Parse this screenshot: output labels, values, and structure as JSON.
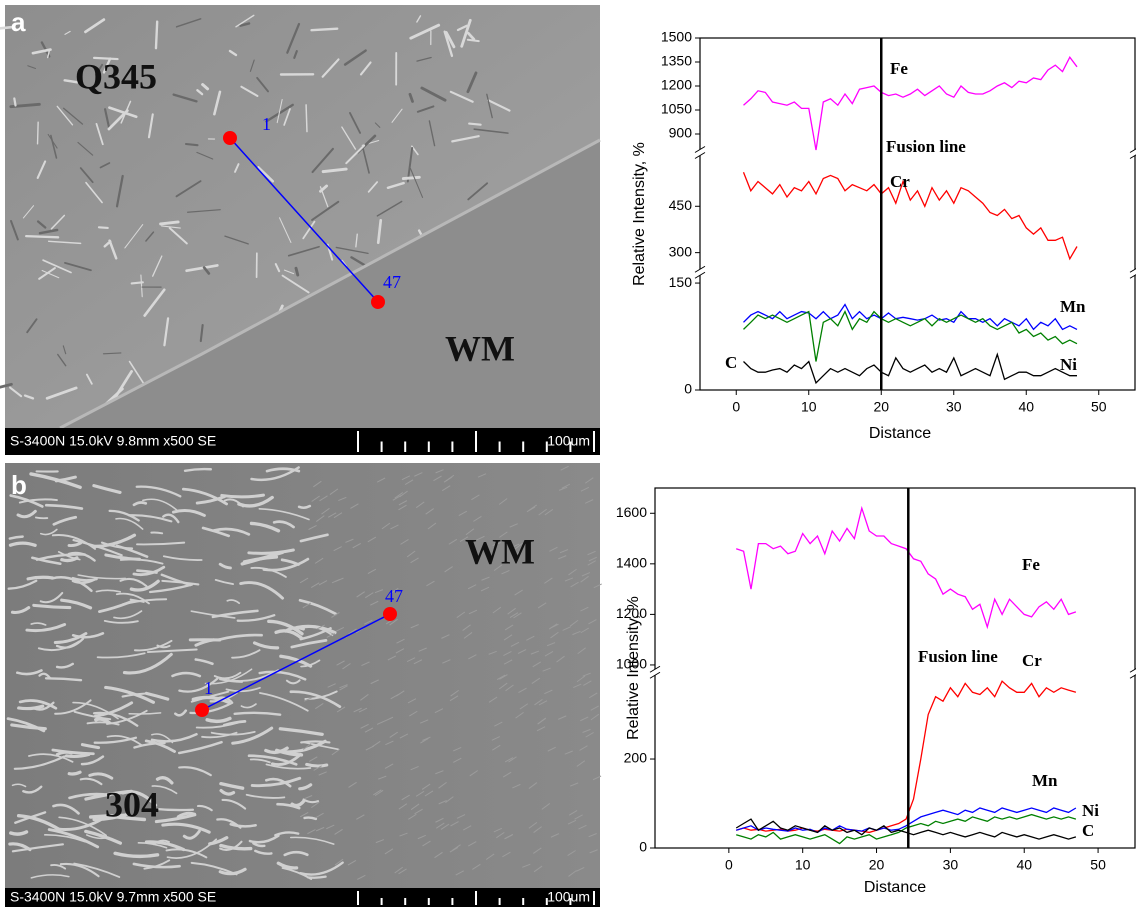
{
  "panels": [
    {
      "letter": "a",
      "labels": [
        "Q345",
        "WM"
      ],
      "point_start": "1",
      "point_end": "47",
      "info": "S-3400N 15.0kV 9.8mm x500 SE",
      "scale": "100um"
    },
    {
      "letter": "b",
      "labels": [
        "WM",
        "304"
      ],
      "point_start": "1",
      "point_end": "47",
      "info": "S-3400N 15.0kV 9.7mm x500 SE",
      "scale": "100um"
    }
  ],
  "chart_data": [
    {
      "type": "line",
      "xlabel": "Distance",
      "ylabel": "Relative Intensity, %",
      "x": [
        1,
        2,
        3,
        4,
        5,
        6,
        7,
        8,
        9,
        10,
        11,
        12,
        13,
        14,
        15,
        16,
        17,
        18,
        19,
        20,
        21,
        22,
        23,
        24,
        25,
        26,
        27,
        28,
        29,
        30,
        31,
        32,
        33,
        34,
        35,
        36,
        37,
        38,
        39,
        40,
        41,
        42,
        43,
        44,
        45,
        46,
        47
      ],
      "xlim": [
        -5,
        55
      ],
      "xticks": [
        0,
        10,
        20,
        30,
        40,
        50
      ],
      "y_segments": [
        {
          "ylim": [
            0,
            155
          ],
          "yticks": [
            0,
            150
          ]
        },
        {
          "ylim": [
            260,
            590
          ],
          "yticks": [
            300,
            450
          ]
        },
        {
          "ylim": [
            850,
            1500
          ],
          "yticks": [
            900,
            1050,
            1200,
            1350,
            1500
          ]
        }
      ],
      "fusion_x": 20,
      "fusion_label": "Fusion line",
      "series": [
        {
          "name": "Fe",
          "color": "#ff00ff",
          "values": [
            1080,
            1120,
            1170,
            1160,
            1100,
            1090,
            1080,
            1100,
            1060,
            1060,
            800,
            1100,
            1120,
            1080,
            1150,
            1090,
            1180,
            1190,
            1200,
            1160,
            1140,
            1150,
            1130,
            1150,
            1180,
            1140,
            1170,
            1200,
            1150,
            1130,
            1200,
            1160,
            1150,
            1150,
            1170,
            1200,
            1220,
            1190,
            1230,
            1220,
            1250,
            1240,
            1300,
            1330,
            1290,
            1380,
            1320
          ]
        },
        {
          "name": "Cr",
          "color": "#ff0000",
          "values": [
            560,
            500,
            530,
            510,
            490,
            520,
            480,
            510,
            500,
            530,
            490,
            540,
            550,
            540,
            500,
            520,
            510,
            500,
            520,
            490,
            510,
            460,
            530,
            470,
            500,
            450,
            510,
            470,
            500,
            460,
            510,
            500,
            480,
            460,
            430,
            420,
            440,
            410,
            420,
            380,
            360,
            380,
            340,
            340,
            350,
            280,
            320
          ]
        },
        {
          "name": "Mn",
          "color": "#0000ff",
          "values": [
            95,
            105,
            110,
            105,
            100,
            110,
            100,
            105,
            110,
            108,
            100,
            110,
            100,
            105,
            120,
            100,
            110,
            100,
            105,
            100,
            108,
            100,
            102,
            100,
            98,
            100,
            105,
            98,
            100,
            95,
            110,
            100,
            100,
            95,
            100,
            90,
            100,
            95,
            90,
            100,
            85,
            95,
            90,
            100,
            85,
            90,
            85
          ]
        },
        {
          "name": "Ni",
          "color": "#008000",
          "values": [
            85,
            95,
            105,
            100,
            105,
            100,
            95,
            100,
            105,
            110,
            40,
            95,
            100,
            90,
            110,
            85,
            100,
            95,
            110,
            100,
            95,
            100,
            95,
            90,
            95,
            100,
            90,
            100,
            95,
            100,
            105,
            100,
            95,
            100,
            90,
            85,
            90,
            95,
            80,
            85,
            75,
            80,
            70,
            75,
            65,
            70,
            65
          ]
        },
        {
          "name": "C",
          "color": "#000000",
          "values": [
            40,
            30,
            25,
            25,
            28,
            30,
            25,
            35,
            30,
            40,
            10,
            20,
            30,
            25,
            30,
            25,
            20,
            30,
            35,
            25,
            20,
            45,
            30,
            25,
            30,
            35,
            25,
            30,
            25,
            45,
            20,
            25,
            30,
            25,
            20,
            50,
            15,
            20,
            25,
            25,
            20,
            20,
            25,
            30,
            25,
            20,
            20
          ]
        }
      ]
    },
    {
      "type": "line",
      "xlabel": "Distance",
      "ylabel": "Relative Intensity, %",
      "x": [
        1,
        2,
        3,
        4,
        5,
        6,
        7,
        8,
        9,
        10,
        11,
        12,
        13,
        14,
        15,
        16,
        17,
        18,
        19,
        20,
        21,
        22,
        23,
        24,
        25,
        26,
        27,
        28,
        29,
        30,
        31,
        32,
        33,
        34,
        35,
        36,
        37,
        38,
        39,
        40,
        41,
        42,
        43,
        44,
        45,
        46,
        47
      ],
      "xlim": [
        -10,
        55
      ],
      "xticks": [
        0,
        10,
        20,
        30,
        40,
        50
      ],
      "y_segments": [
        {
          "ylim": [
            0,
            390
          ],
          "yticks": [
            0,
            200
          ]
        },
        {
          "ylim": [
            980,
            1700
          ],
          "yticks": [
            1000,
            1200,
            1400,
            1600
          ]
        }
      ],
      "fusion_x": 24.3,
      "fusion_label": "Fusion line",
      "series": [
        {
          "name": "Fe",
          "color": "#ff00ff",
          "values": [
            1460,
            1450,
            1300,
            1480,
            1480,
            1460,
            1470,
            1440,
            1450,
            1520,
            1480,
            1510,
            1440,
            1530,
            1490,
            1540,
            1500,
            1620,
            1530,
            1510,
            1510,
            1480,
            1470,
            1460,
            1420,
            1410,
            1360,
            1340,
            1280,
            1300,
            1280,
            1270,
            1220,
            1240,
            1150,
            1260,
            1200,
            1260,
            1230,
            1200,
            1190,
            1230,
            1250,
            1220,
            1260,
            1200,
            1210
          ]
        },
        {
          "name": "Cr",
          "color": "#ff0000",
          "values": [
            40,
            45,
            40,
            42,
            38,
            40,
            42,
            38,
            40,
            45,
            40,
            38,
            42,
            40,
            38,
            42,
            40,
            38,
            35,
            40,
            45,
            50,
            55,
            65,
            110,
            200,
            300,
            340,
            330,
            360,
            340,
            370,
            350,
            345,
            360,
            340,
            375,
            360,
            350,
            350,
            370,
            340,
            360,
            350,
            360,
            355,
            350
          ]
        },
        {
          "name": "Mn",
          "color": "#0000ff",
          "values": [
            40,
            45,
            50,
            40,
            45,
            42,
            40,
            38,
            45,
            40,
            42,
            35,
            45,
            40,
            50,
            42,
            40,
            38,
            45,
            40,
            45,
            40,
            42,
            50,
            60,
            70,
            75,
            80,
            85,
            80,
            75,
            85,
            80,
            90,
            85,
            80,
            90,
            85,
            80,
            85,
            90,
            85,
            80,
            90,
            85,
            80,
            90
          ]
        },
        {
          "name": "Ni",
          "color": "#008000",
          "values": [
            30,
            25,
            20,
            30,
            25,
            35,
            20,
            25,
            30,
            25,
            20,
            25,
            30,
            20,
            10,
            25,
            20,
            25,
            30,
            20,
            25,
            30,
            35,
            45,
            50,
            55,
            50,
            60,
            55,
            60,
            65,
            60,
            70,
            65,
            60,
            70,
            65,
            70,
            65,
            70,
            75,
            70,
            65,
            70,
            65,
            70,
            65
          ]
        },
        {
          "name": "C",
          "color": "#000000",
          "values": [
            45,
            55,
            65,
            40,
            50,
            60,
            45,
            40,
            50,
            45,
            40,
            35,
            50,
            40,
            45,
            35,
            40,
            30,
            45,
            40,
            50,
            35,
            40,
            35,
            30,
            35,
            40,
            35,
            30,
            35,
            30,
            25,
            30,
            35,
            30,
            25,
            35,
            30,
            25,
            30,
            25,
            20,
            25,
            30,
            25,
            20,
            25
          ]
        }
      ]
    }
  ]
}
